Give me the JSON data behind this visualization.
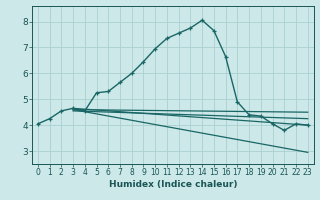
{
  "xlabel": "Humidex (Indice chaleur)",
  "ylabel": "",
  "bg_color": "#cce8e8",
  "grid_color": "#aad0d0",
  "line_color": "#1a6666",
  "text_color": "#1a5555",
  "xlim": [
    -0.5,
    23.5
  ],
  "ylim": [
    2.5,
    8.6
  ],
  "xticks": [
    0,
    1,
    2,
    3,
    4,
    5,
    6,
    7,
    8,
    9,
    10,
    11,
    12,
    13,
    14,
    15,
    16,
    17,
    18,
    19,
    20,
    21,
    22,
    23
  ],
  "yticks": [
    3,
    4,
    5,
    6,
    7,
    8
  ],
  "series": [
    [
      0,
      4.05
    ],
    [
      1,
      4.25
    ],
    [
      2,
      4.55
    ],
    [
      3,
      4.65
    ],
    [
      4,
      4.55
    ],
    [
      5,
      5.25
    ],
    [
      6,
      5.3
    ],
    [
      7,
      5.65
    ],
    [
      8,
      6.0
    ],
    [
      9,
      6.45
    ],
    [
      10,
      6.95
    ],
    [
      11,
      7.35
    ],
    [
      12,
      7.55
    ],
    [
      13,
      7.75
    ],
    [
      14,
      8.05
    ],
    [
      15,
      7.65
    ],
    [
      16,
      6.65
    ],
    [
      17,
      4.9
    ],
    [
      18,
      4.4
    ],
    [
      19,
      4.35
    ],
    [
      20,
      4.05
    ],
    [
      21,
      3.8
    ],
    [
      22,
      4.05
    ],
    [
      23,
      4.0
    ]
  ],
  "flat_lines": [
    {
      "start": 3,
      "end": 23,
      "y_start": 4.6,
      "y_end": 4.5
    },
    {
      "start": 3,
      "end": 23,
      "y_start": 4.55,
      "y_end": 4.25
    },
    {
      "start": 3,
      "end": 23,
      "y_start": 4.65,
      "y_end": 4.0
    },
    {
      "start": 3,
      "end": 23,
      "y_start": 4.6,
      "y_end": 2.95
    }
  ]
}
